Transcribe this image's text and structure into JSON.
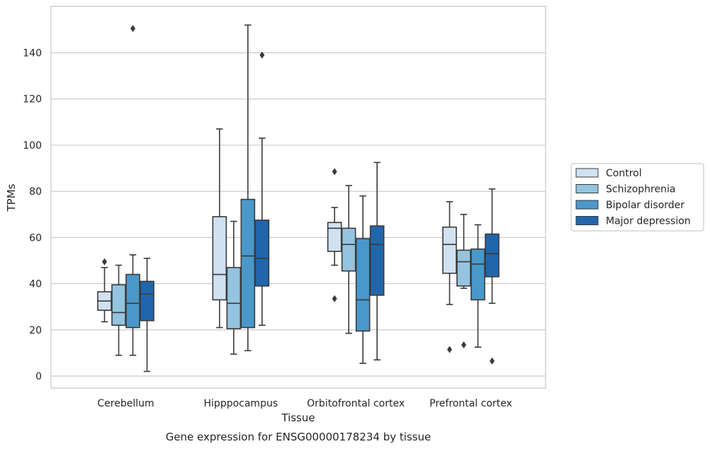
{
  "chart_data": {
    "type": "boxplot",
    "xlabel": "Tissue",
    "ylabel": "TPMs",
    "caption": "Gene expression for ENSG00000178234 by tissue",
    "ylim": [
      -5,
      160
    ],
    "yticks": [
      0,
      20,
      40,
      60,
      80,
      100,
      120,
      140
    ],
    "grid": "horizontal",
    "legend_position": "right",
    "categories": [
      "Cerebellum",
      "Hipppocampus",
      "Orbitofrontal cortex",
      "Prefrontal cortex"
    ],
    "series": [
      {
        "name": "Control",
        "color": "#d0e1f2",
        "boxes": [
          {
            "whislo": 23.5,
            "q1": 28.5,
            "med": 32.5,
            "q3": 36.5,
            "whishi": 47,
            "fliers": [
              49.5
            ]
          },
          {
            "whislo": 21,
            "q1": 33,
            "med": 44,
            "q3": 69,
            "whishi": 107,
            "fliers": []
          },
          {
            "whislo": 48,
            "q1": 54,
            "med": 64,
            "q3": 66.5,
            "whishi": 73,
            "fliers": [
              88.5,
              33.5
            ]
          },
          {
            "whislo": 31,
            "q1": 44.5,
            "med": 57,
            "q3": 64.5,
            "whishi": 75.5,
            "fliers": [
              11.5
            ]
          }
        ]
      },
      {
        "name": "Schizophrenia",
        "color": "#94c4df",
        "boxes": [
          {
            "whislo": 9,
            "q1": 22,
            "med": 27.5,
            "q3": 39.5,
            "whishi": 48,
            "fliers": []
          },
          {
            "whislo": 9.5,
            "q1": 20.5,
            "med": 31.5,
            "q3": 47,
            "whishi": 67,
            "fliers": []
          },
          {
            "whislo": 18.5,
            "q1": 45.5,
            "med": 57,
            "q3": 64,
            "whishi": 82.5,
            "fliers": []
          },
          {
            "whislo": 38,
            "q1": 39,
            "med": 49.5,
            "q3": 54.5,
            "whishi": 70,
            "fliers": [
              13.5
            ]
          }
        ]
      },
      {
        "name": "Bipolar disorder",
        "color": "#4a98c9",
        "boxes": [
          {
            "whislo": 9,
            "q1": 21,
            "med": 31.5,
            "q3": 44,
            "whishi": 52.5,
            "fliers": [
              150.5
            ]
          },
          {
            "whislo": 11,
            "q1": 21,
            "med": 52,
            "q3": 76.5,
            "whishi": 152,
            "fliers": []
          },
          {
            "whislo": 5.5,
            "q1": 19.5,
            "med": 33,
            "q3": 59.5,
            "whishi": 78,
            "fliers": []
          },
          {
            "whislo": 12.5,
            "q1": 33,
            "med": 48.5,
            "q3": 55,
            "whishi": 65.5,
            "fliers": []
          }
        ]
      },
      {
        "name": "Major depression",
        "color": "#2166ac",
        "boxes": [
          {
            "whislo": 2,
            "q1": 24,
            "med": 35.5,
            "q3": 41,
            "whishi": 51,
            "fliers": []
          },
          {
            "whislo": 22,
            "q1": 39,
            "med": 51,
            "q3": 67.5,
            "whishi": 103,
            "fliers": [
              139
            ]
          },
          {
            "whislo": 7,
            "q1": 35,
            "med": 57,
            "q3": 65,
            "whishi": 92.5,
            "fliers": []
          },
          {
            "whislo": 31.5,
            "q1": 43,
            "med": 53,
            "q3": 61.5,
            "whishi": 81,
            "fliers": [
              6.5
            ]
          }
        ]
      }
    ]
  }
}
